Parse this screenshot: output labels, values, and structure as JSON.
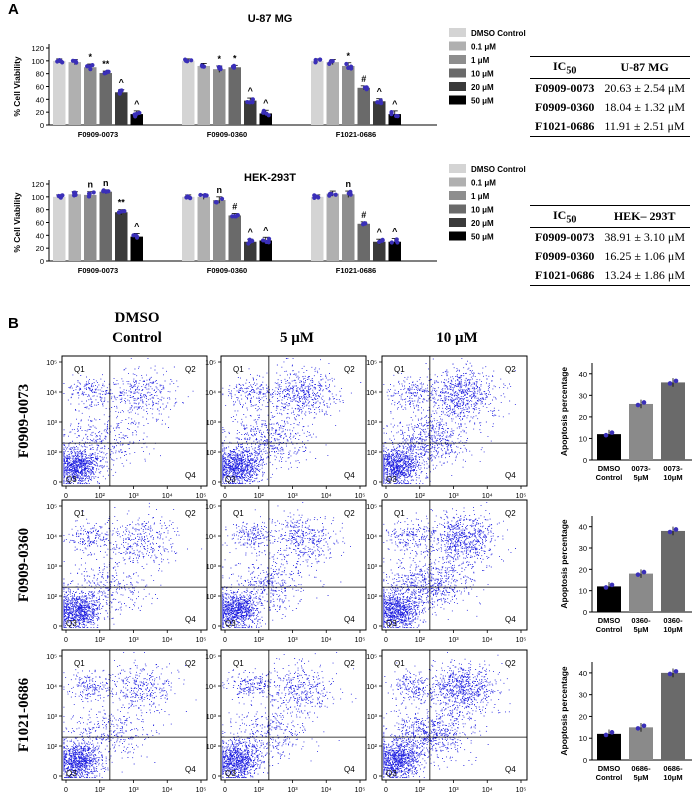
{
  "panel_a_label": "A",
  "panel_b_label": "B",
  "legend": {
    "entries": [
      "DMSO Control",
      "0.1 μM",
      "1 μM",
      "10 μM",
      "20 μM",
      "50 μM"
    ],
    "colors": [
      "#d4d4d4",
      "#b0b0b0",
      "#8e8e8e",
      "#6a6a6a",
      "#3a3a3a",
      "#000000"
    ]
  },
  "ic50_tables": [
    {
      "header_compound": "IC",
      "header_sub": "50",
      "header_line": "U-87 MG",
      "rows": [
        [
          "F0909-0073",
          "20.63 ± 2.54 μM"
        ],
        [
          "F0909-0360",
          "18.04 ± 1.32 μM"
        ],
        [
          "F1021-0686",
          "11.91 ± 2.51 μM"
        ]
      ]
    },
    {
      "header_compound": "IC",
      "header_sub": "50",
      "header_line": "HEK– 293T",
      "rows": [
        [
          "F0909-0073",
          "38.91 ± 3.10 μM"
        ],
        [
          "F0909-0360",
          "16.25 ± 1.06 μM"
        ],
        [
          "F1021-0686",
          "13.24 ± 1.86 μM"
        ]
      ]
    }
  ],
  "flow": {
    "col_headers": [
      "DMSO\nControl",
      "5 μM",
      "10 μM"
    ],
    "row_labels": [
      "F0909-0073",
      "F0909-0360",
      "F1021-0686"
    ],
    "quadrants": [
      "Q1",
      "Q2",
      "Q3",
      "Q4"
    ],
    "x_ticks": [
      "0",
      "10²",
      "10³",
      "10⁴",
      "10⁵"
    ],
    "y_ticks": [
      "0",
      "10²",
      "10³",
      "10⁴",
      "10⁵"
    ]
  },
  "chart_data": [
    {
      "type": "bar",
      "title": "U-87 MG",
      "ylabel": "% Cell Viability",
      "ylim": [
        0,
        120
      ],
      "yticks": [
        0,
        20,
        40,
        60,
        80,
        100,
        120
      ],
      "categories": [
        "F0909-0073",
        "F0909-0360",
        "F1021-0686"
      ],
      "series": [
        {
          "name": "DMSO Control",
          "values": [
            100,
            100,
            100
          ]
        },
        {
          "name": "0.1 μM",
          "values": [
            98,
            92,
            98
          ]
        },
        {
          "name": "1 μM",
          "values": [
            90,
            87,
            92
          ]
        },
        {
          "name": "10 μM",
          "values": [
            81,
            90,
            58
          ]
        },
        {
          "name": "20 μM",
          "values": [
            51,
            38,
            37
          ]
        },
        {
          "name": "50 μM",
          "values": [
            17,
            18,
            17
          ]
        }
      ],
      "significance": [
        [
          "",
          "",
          "*",
          "**",
          "^",
          "^"
        ],
        [
          "",
          "",
          "*",
          "*",
          "^",
          "^"
        ],
        [
          "",
          "",
          "*",
          "#",
          "^",
          "^"
        ]
      ]
    },
    {
      "type": "bar",
      "title": "HEK-293T",
      "ylabel": "% Cell Viability",
      "ylim": [
        0,
        120
      ],
      "yticks": [
        0,
        20,
        40,
        60,
        80,
        100,
        120
      ],
      "categories": [
        "F0909-0073",
        "F0909-0360",
        "F1021-0686"
      ],
      "series": [
        {
          "name": "DMSO Control",
          "values": [
            100,
            100,
            100
          ]
        },
        {
          "name": "0.1 μM",
          "values": [
            104,
            100,
            105
          ]
        },
        {
          "name": "1 μM",
          "values": [
            103,
            95,
            104
          ]
        },
        {
          "name": "10 μM",
          "values": [
            108,
            71,
            58
          ]
        },
        {
          "name": "20 μM",
          "values": [
            76,
            30,
            30
          ]
        },
        {
          "name": "50 μM",
          "values": [
            38,
            32,
            30
          ]
        }
      ],
      "significance": [
        [
          "",
          "",
          "n",
          "n",
          "**",
          "^"
        ],
        [
          "",
          "",
          "n",
          "#",
          "^",
          "^"
        ],
        [
          "",
          "",
          "n",
          "#",
          "^",
          "^"
        ]
      ]
    },
    {
      "type": "bar",
      "ylabel": "Apoptosis percentage",
      "categories": [
        "DMSO\nControl",
        "0073-\n5μM",
        "0073-\n10μM"
      ],
      "values": [
        12,
        26,
        36
      ]
    },
    {
      "type": "bar",
      "ylabel": "Apoptosis percentage",
      "categories": [
        "DMSO\nControl",
        "0360-\n5μM",
        "0360-\n10μM"
      ],
      "values": [
        12,
        18,
        38
      ]
    },
    {
      "type": "bar",
      "ylabel": "Apoptosis percentage",
      "categories": [
        "DMSO\nControl",
        "0686-\n5μM",
        "0686-\n10μM"
      ],
      "values": [
        12,
        15,
        40
      ]
    }
  ]
}
